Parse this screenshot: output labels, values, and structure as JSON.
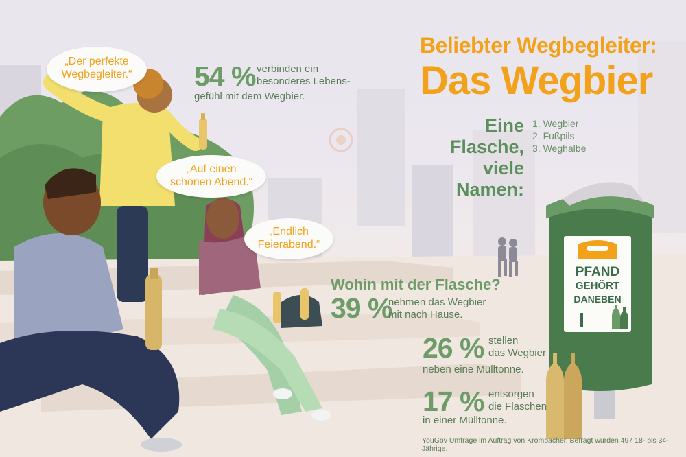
{
  "colors": {
    "accent_orange": "#f2a21a",
    "green_text": "#6e9c69",
    "bin_green": "#4a7b4c"
  },
  "title": {
    "line1": "Beliebter Wegbegleiter:",
    "line2": "Das Wegbier"
  },
  "names": {
    "heading_line1": "Eine Flasche,",
    "heading_line2": "viele Namen:",
    "items": [
      "1. Wegbier",
      "2. Fußpils",
      "3. Weghalbe"
    ]
  },
  "stats": [
    {
      "value": "54 %",
      "lines": [
        "verbinden ein",
        "besonderes Lebens-",
        "gefühl mit dem Wegbier."
      ]
    },
    {
      "value": "39 %",
      "lines": [
        "nehmen das Wegbier",
        "mit nach Hause."
      ]
    },
    {
      "value": "26 %",
      "lines": [
        "stellen",
        "das Wegbier",
        "neben eine Mülltonne."
      ]
    },
    {
      "value": "17 %",
      "lines": [
        "entsorgen",
        "die Flaschen",
        "in einer Mülltonne."
      ]
    }
  ],
  "question": "Wohin mit der Flasche?",
  "quotes": [
    {
      "lines": [
        "„Der perfekte",
        "Wegbegleiter.“"
      ]
    },
    {
      "lines": [
        "„Auf einen",
        "schönen Abend.“"
      ]
    },
    {
      "lines": [
        "„Endlich",
        "Feierabend.“"
      ]
    }
  ],
  "bin_sign": {
    "line1": "PFAND",
    "line2": "GEHÖRT",
    "line3": "DANEBEN"
  },
  "footnote": "YouGov Umfrage im Auftrag von Krombacher. Befragt wurden 497 18- bis 34-Jährige."
}
